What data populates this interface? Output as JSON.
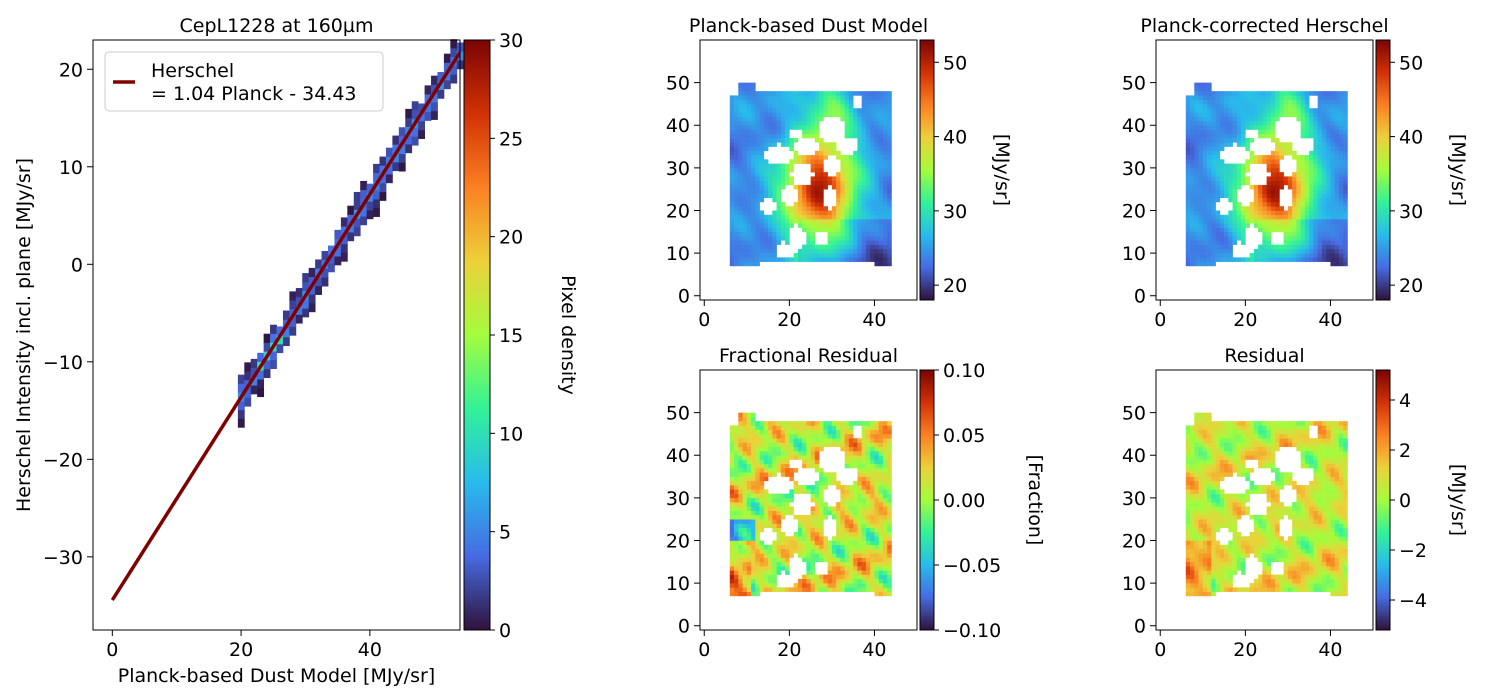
{
  "chart_data": [
    {
      "type": "heatmap",
      "subtype": "2d-histogram-with-fit-line",
      "title": "CepL1228 at 160µm",
      "xlabel": "Planck-based Dust Model [MJy/sr]",
      "ylabel": "Herschel Intensity incl. plane [MJy/sr]",
      "xlim": [
        -3,
        54
      ],
      "ylim": [
        -37.5,
        23
      ],
      "xticks": [
        0,
        20,
        40
      ],
      "yticks": [
        -30,
        -20,
        -10,
        0,
        10,
        20
      ],
      "xtick_labels": [
        "0",
        "20",
        "40"
      ],
      "ytick_labels": [
        "−30",
        "−20",
        "−10",
        "0",
        "10",
        "20"
      ],
      "fit_line": {
        "slope": 1.04,
        "intercept": -34.43,
        "x_range": [
          0,
          54
        ],
        "color": "#800000"
      },
      "legend": {
        "placement": "upper-left",
        "line1": "Herschel",
        "line2": "= 1.04 Planck - 34.43"
      },
      "density_band": {
        "x_range": [
          19.5,
          54
        ],
        "half_width": 1.3
      },
      "colorbar": {
        "label": "Pixel density",
        "range": [
          0,
          30
        ],
        "ticks": [
          0,
          5,
          10,
          15,
          20,
          25,
          30
        ],
        "tick_labels": [
          "0",
          "5",
          "10",
          "15",
          "20",
          "25",
          "30"
        ]
      }
    },
    {
      "type": "heatmap",
      "title": "Planck-based Dust Model",
      "xlim": [
        -1,
        50
      ],
      "ylim": [
        -1,
        60
      ],
      "xticks": [
        0,
        20,
        40
      ],
      "yticks": [
        0,
        10,
        20,
        30,
        40,
        50
      ],
      "xtick_labels": [
        "0",
        "20",
        "40"
      ],
      "ytick_labels": [
        "0",
        "10",
        "20",
        "30",
        "40",
        "50"
      ],
      "pattern": "model",
      "colorbar": {
        "label": "[MJy/sr]",
        "range": [
          18,
          53
        ],
        "ticks": [
          20,
          30,
          40,
          50
        ],
        "tick_labels": [
          "20",
          "30",
          "40",
          "50"
        ]
      }
    },
    {
      "type": "heatmap",
      "title": "Planck-corrected Herschel",
      "xlim": [
        -1,
        50
      ],
      "ylim": [
        -1,
        60
      ],
      "xticks": [
        0,
        20,
        40
      ],
      "yticks": [
        0,
        10,
        20,
        30,
        40,
        50
      ],
      "xtick_labels": [
        "0",
        "20",
        "40"
      ],
      "ytick_labels": [
        "0",
        "10",
        "20",
        "30",
        "40",
        "50"
      ],
      "pattern": "model",
      "colorbar": {
        "label": "[MJy/sr]",
        "range": [
          18,
          53
        ],
        "ticks": [
          20,
          30,
          40,
          50
        ],
        "tick_labels": [
          "20",
          "30",
          "40",
          "50"
        ]
      }
    },
    {
      "type": "heatmap",
      "title": "Fractional Residual",
      "xlim": [
        -1,
        50
      ],
      "ylim": [
        -1,
        60
      ],
      "xticks": [
        0,
        20,
        40
      ],
      "yticks": [
        0,
        10,
        20,
        30,
        40,
        50
      ],
      "xtick_labels": [
        "0",
        "20",
        "40"
      ],
      "ytick_labels": [
        "0",
        "10",
        "20",
        "30",
        "40",
        "50"
      ],
      "pattern": "fraction",
      "colorbar": {
        "label": "[Fraction]",
        "range": [
          -0.1,
          0.1
        ],
        "ticks": [
          -0.1,
          -0.05,
          0,
          0.05,
          0.1
        ],
        "tick_labels": [
          "−0.10",
          "−0.05",
          "0.00",
          "0.05",
          "0.10"
        ]
      }
    },
    {
      "type": "heatmap",
      "title": "Residual",
      "xlim": [
        -1,
        50
      ],
      "ylim": [
        -1,
        60
      ],
      "xticks": [
        0,
        20,
        40
      ],
      "yticks": [
        0,
        10,
        20,
        30,
        40,
        50
      ],
      "xtick_labels": [
        "0",
        "20",
        "40"
      ],
      "ytick_labels": [
        "0",
        "10",
        "20",
        "30",
        "40",
        "50"
      ],
      "pattern": "residual",
      "colorbar": {
        "label": "[MJy/sr]",
        "range": [
          -5.2,
          5.2
        ],
        "ticks": [
          -4,
          -2,
          0,
          2,
          4
        ],
        "tick_labels": [
          "−4",
          "−2",
          "0",
          "2",
          "4"
        ]
      }
    }
  ],
  "colormap": "turbo",
  "colors": {
    "fit_line": "#800000",
    "axes": "#000000",
    "background": "#ffffff"
  }
}
